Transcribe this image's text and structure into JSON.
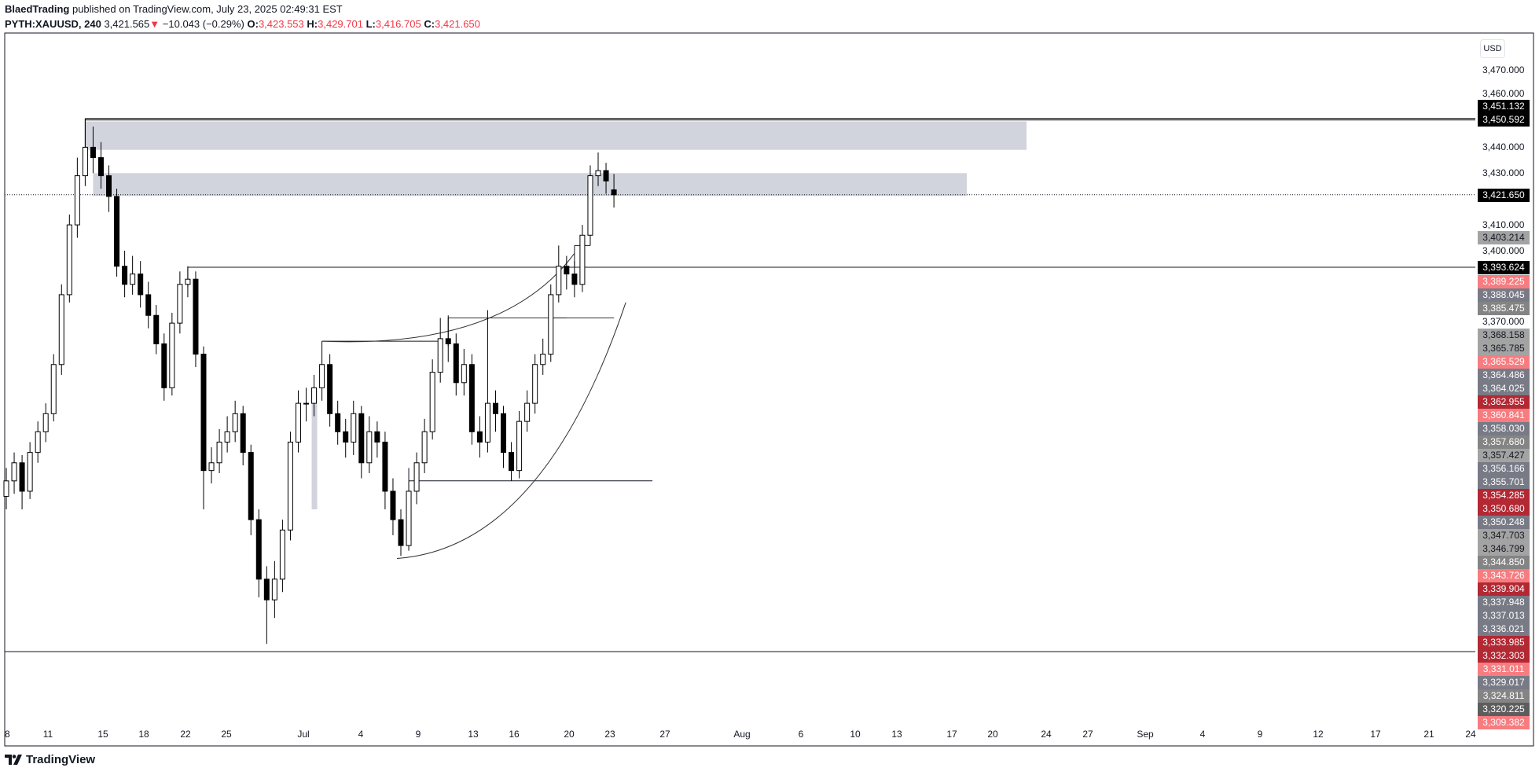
{
  "header": {
    "author": "BlaedTrading",
    "published": " published on TradingView.com, July 23, 2025 02:49:31 EST",
    "symbol": "PYTH:XAUUSD, 240",
    "last": "3,421.565",
    "change": "−10.043 (−0.29%)",
    "o_label": "O:",
    "o": "3,423.553",
    "h_label": "H:",
    "h": "3,429.701",
    "l_label": "L:",
    "l": "3,416.705",
    "c_label": "C:",
    "c": "3,421.650",
    "down_icon": "triangle-down"
  },
  "currency": "USD",
  "branding": "TradingView",
  "colors": {
    "up_body": "#ffffff",
    "down_body": "#000000",
    "wick": "#000000",
    "zone": "#d1d4dc",
    "negative": "#f23645"
  },
  "chart_data": {
    "type": "candlestick",
    "timeframe": "240",
    "price_ticks": [
      3470,
      3460,
      3440,
      3430,
      3410,
      3400,
      3370
    ],
    "time_ticks": [
      "8",
      "11",
      "15",
      "18",
      "22",
      "25",
      "Jul",
      "4",
      "9",
      "13",
      "16",
      "20",
      "23",
      "27",
      "Aug",
      "6",
      "10",
      "13",
      "17",
      "20",
      "24",
      "27",
      "Sep",
      "4",
      "9",
      "12",
      "17",
      "21",
      "24"
    ],
    "candles_ohlc": [
      [
        3305,
        3316,
        3300,
        3311
      ],
      [
        3311,
        3322,
        3306,
        3318
      ],
      [
        3318,
        3321,
        3300,
        3307
      ],
      [
        3307,
        3326,
        3304,
        3322
      ],
      [
        3322,
        3334,
        3318,
        3330
      ],
      [
        3330,
        3341,
        3326,
        3337
      ],
      [
        3337,
        3360,
        3334,
        3356
      ],
      [
        3356,
        3387,
        3352,
        3383
      ],
      [
        3383,
        3414,
        3380,
        3410
      ],
      [
        3410,
        3436,
        3405,
        3429
      ],
      [
        3429,
        3451,
        3425,
        3440
      ],
      [
        3440,
        3448,
        3430,
        3436
      ],
      [
        3436,
        3442,
        3424,
        3429
      ],
      [
        3429,
        3433,
        3415,
        3421
      ],
      [
        3421,
        3424,
        3390,
        3394
      ],
      [
        3394,
        3400,
        3382,
        3387
      ],
      [
        3387,
        3398,
        3383,
        3391
      ],
      [
        3391,
        3396,
        3378,
        3383
      ],
      [
        3383,
        3388,
        3370,
        3375
      ],
      [
        3375,
        3379,
        3360,
        3364
      ],
      [
        3364,
        3368,
        3342,
        3347
      ],
      [
        3347,
        3376,
        3344,
        3372
      ],
      [
        3372,
        3392,
        3368,
        3387
      ],
      [
        3387,
        3394,
        3382,
        3389
      ],
      [
        3389,
        3392,
        3355,
        3360
      ],
      [
        3360,
        3363,
        3300,
        3315
      ],
      [
        3315,
        3324,
        3310,
        3318
      ],
      [
        3318,
        3331,
        3314,
        3326
      ],
      [
        3326,
        3336,
        3322,
        3330
      ],
      [
        3330,
        3342,
        3326,
        3337
      ],
      [
        3337,
        3340,
        3317,
        3322
      ],
      [
        3322,
        3325,
        3290,
        3296
      ],
      [
        3296,
        3300,
        3266,
        3273
      ],
      [
        3273,
        3278,
        3248,
        3265
      ],
      [
        3265,
        3280,
        3258,
        3273
      ],
      [
        3273,
        3296,
        3268,
        3292
      ],
      [
        3292,
        3330,
        3288,
        3326
      ],
      [
        3326,
        3346,
        3322,
        3341
      ],
      [
        3341,
        3347,
        3334,
        3341
      ],
      [
        3341,
        3352,
        3336,
        3347
      ],
      [
        3347,
        3365,
        3342,
        3356
      ],
      [
        3356,
        3360,
        3332,
        3337
      ],
      [
        3337,
        3342,
        3325,
        3330
      ],
      [
        3330,
        3335,
        3320,
        3326
      ],
      [
        3326,
        3342,
        3321,
        3337
      ],
      [
        3337,
        3340,
        3312,
        3318
      ],
      [
        3318,
        3336,
        3314,
        3330
      ],
      [
        3330,
        3334,
        3320,
        3326
      ],
      [
        3326,
        3330,
        3300,
        3307
      ],
      [
        3307,
        3312,
        3290,
        3296
      ],
      [
        3296,
        3300,
        3282,
        3286
      ],
      [
        3286,
        3311,
        3284,
        3307
      ],
      [
        3307,
        3322,
        3302,
        3318
      ],
      [
        3318,
        3335,
        3314,
        3330
      ],
      [
        3330,
        3358,
        3327,
        3353
      ],
      [
        3353,
        3374,
        3349,
        3366
      ],
      [
        3366,
        3375,
        3357,
        3364
      ],
      [
        3364,
        3368,
        3344,
        3349
      ],
      [
        3349,
        3362,
        3344,
        3356
      ],
      [
        3356,
        3360,
        3325,
        3330
      ],
      [
        3330,
        3336,
        3320,
        3326
      ],
      [
        3326,
        3377,
        3322,
        3341
      ],
      [
        3341,
        3346,
        3330,
        3337
      ],
      [
        3337,
        3340,
        3316,
        3322
      ],
      [
        3322,
        3326,
        3311,
        3315
      ],
      [
        3315,
        3338,
        3312,
        3334
      ],
      [
        3334,
        3346,
        3330,
        3341
      ],
      [
        3341,
        3360,
        3337,
        3356
      ],
      [
        3356,
        3366,
        3352,
        3360
      ],
      [
        3360,
        3387,
        3357,
        3383
      ],
      [
        3383,
        3402,
        3380,
        3394
      ],
      [
        3394,
        3398,
        3385,
        3391
      ],
      [
        3391,
        3396,
        3382,
        3387
      ],
      [
        3387,
        3410,
        3384,
        3406
      ],
      [
        3406,
        3433,
        3402,
        3429
      ],
      [
        3429,
        3438,
        3425,
        3431
      ],
      [
        3431,
        3434,
        3422,
        3427
      ],
      [
        3423.553,
        3429.701,
        3416.705,
        3421.65
      ]
    ],
    "price_labels": [
      {
        "text": "3,451.132",
        "price": 3451.132,
        "style": "black"
      },
      {
        "text": "3,450.592",
        "price": 3450.592,
        "style": "black"
      },
      {
        "text": "3,421.650",
        "price": 3421.65,
        "style": "black"
      },
      {
        "text": "3,403.214",
        "price": 3403.214,
        "style": "light"
      },
      {
        "text": "3,393.624",
        "price": 3393.624,
        "style": "black"
      },
      {
        "text": "3,389.225",
        "style": "pink"
      },
      {
        "text": "3,388.045",
        "style": "slate"
      },
      {
        "text": "3,385.475",
        "style": "gray"
      },
      {
        "text": "3,368.158",
        "style": "light"
      },
      {
        "text": "3,365.785",
        "style": "light"
      },
      {
        "text": "3,365.529",
        "style": "pink"
      },
      {
        "text": "3,364.486",
        "style": "slate"
      },
      {
        "text": "3,364.025",
        "style": "slate"
      },
      {
        "text": "3,362.955",
        "style": "red"
      },
      {
        "text": "3,360.841",
        "style": "pink"
      },
      {
        "text": "3,358.030",
        "style": "slate"
      },
      {
        "text": "3,357.680",
        "style": "gray"
      },
      {
        "text": "3,357.427",
        "style": "light"
      },
      {
        "text": "3,356.166",
        "style": "slate"
      },
      {
        "text": "3,355.701",
        "style": "slate"
      },
      {
        "text": "3,354.285",
        "style": "red"
      },
      {
        "text": "3,350.680",
        "style": "red"
      },
      {
        "text": "3,350.248",
        "style": "slate"
      },
      {
        "text": "3,347.703",
        "style": "light"
      },
      {
        "text": "3,346.799",
        "style": "light"
      },
      {
        "text": "3,344.850",
        "style": "gray"
      },
      {
        "text": "3,343.726",
        "style": "pink"
      },
      {
        "text": "3,339.904",
        "style": "red"
      },
      {
        "text": "3,337.948",
        "style": "slate"
      },
      {
        "text": "3,337.013",
        "style": "slate"
      },
      {
        "text": "3,336.021",
        "style": "slate"
      },
      {
        "text": "3,333.985",
        "style": "red"
      },
      {
        "text": "3,332.303",
        "style": "red"
      },
      {
        "text": "3,331.011",
        "style": "pink"
      },
      {
        "text": "3,329.017",
        "style": "slate"
      },
      {
        "text": "3,324.811",
        "style": "gray"
      },
      {
        "text": "3,320.225",
        "style": "dark"
      },
      {
        "text": "3,309.382",
        "style": "pink"
      }
    ],
    "label_styles": {
      "black": {
        "bg": "#000000",
        "fg": "#ffffff"
      },
      "pink": {
        "bg": "#f77c80",
        "fg": "#ffffff"
      },
      "slate": {
        "bg": "#787b86",
        "fg": "#ffffff"
      },
      "gray": {
        "bg": "#848484",
        "fg": "#ffffff"
      },
      "light": {
        "bg": "#a3a3a3",
        "fg": "#131722"
      },
      "red": {
        "bg": "#b22833",
        "fg": "#ffffff"
      },
      "dark": {
        "bg": "#5d5d5d",
        "fg": "#ffffff"
      }
    }
  }
}
